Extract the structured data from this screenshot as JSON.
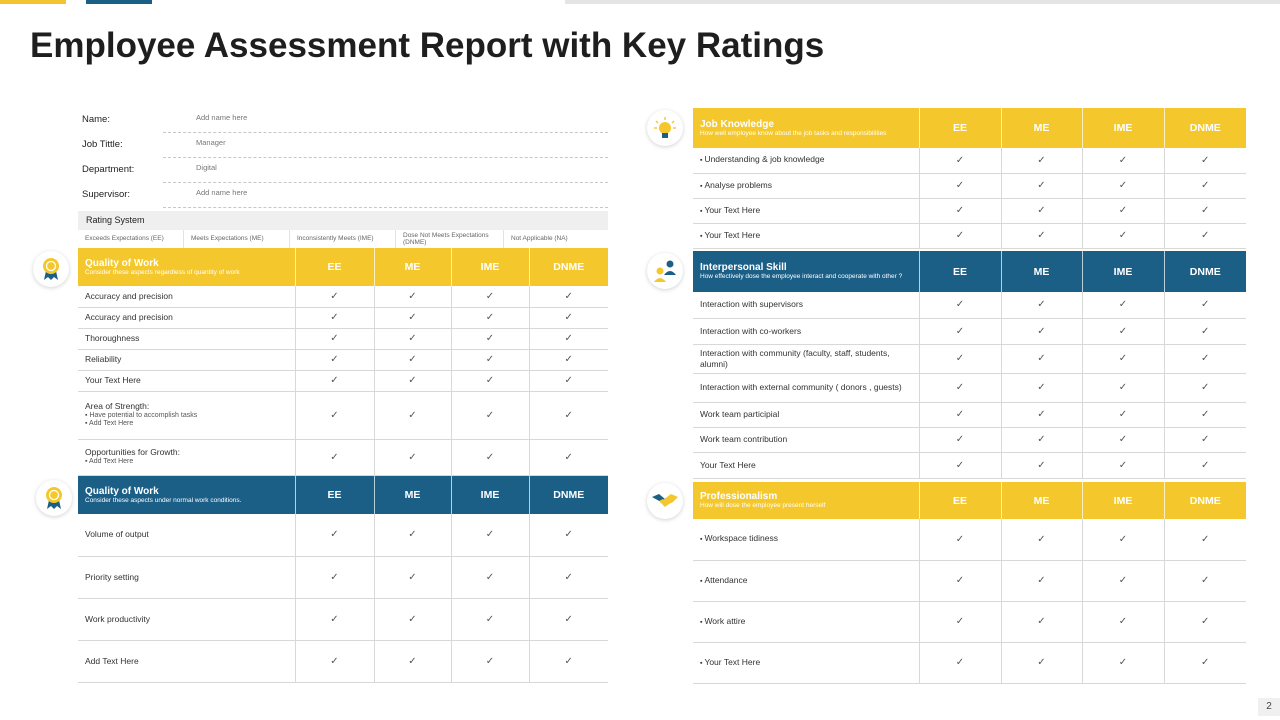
{
  "title": "Employee Assessment Report with Key Ratings",
  "page_number": "2",
  "check": "✓",
  "info": {
    "name_label": "Name:",
    "name_value": "Add name here",
    "job_label": "Job Tittle:",
    "job_value": "Manager",
    "dept_label": "Department:",
    "dept_value": "Digital",
    "sup_label": "Supervisor:",
    "sup_value": "Add name here"
  },
  "rating_system": {
    "title": "Rating System",
    "items": [
      "Exceeds Expectations (EE)",
      "Meets Expectations (ME)",
      "Inconsistently Meets (IME)",
      "Dose Not Meets Expectations (DNME)",
      "Not Applicable (NA)"
    ]
  },
  "columns": [
    "EE",
    "ME",
    "IME",
    "DNME"
  ],
  "quality1": {
    "title": "Quality of Work",
    "subtitle": "Consider these aspects regardless of quantity of work",
    "rows": [
      "Accuracy and precision",
      "Accuracy and precision",
      "Thoroughness",
      "Reliability",
      "Your Text Here"
    ],
    "strength_title": "Area of Strength:",
    "strength_items": [
      "Have potential  to accomplish tasks",
      "Add Text Here"
    ],
    "growth_title": "Opportunities  for Growth:",
    "growth_items": [
      "Add Text Here"
    ]
  },
  "quality2": {
    "title": "Quality of Work",
    "subtitle": "Consider these aspects  under  normal work conditions.",
    "rows": [
      "Volume of output",
      "Priority setting",
      "Work productivity",
      "Add Text Here"
    ]
  },
  "job_knowledge": {
    "title": "Job Knowledge",
    "subtitle": "How well employee  know about  the job tasks and responsibilities",
    "rows": [
      "Understanding & job knowledge",
      "Analyse problems",
      "Your Text Here",
      " Your Text Here"
    ]
  },
  "interpersonal": {
    "title": "Interpersonal Skill",
    "subtitle": "How effectively  dose the employee interact  and cooperate with other  ?",
    "rows": [
      "Interaction with supervisors",
      "Interaction with co-workers",
      "Interaction with community  (faculty, staff, students, alumni)",
      "Interaction with external community ( donors , guests)",
      "Work team participial",
      "Work team contribution",
      "Your Text Here"
    ]
  },
  "professionalism": {
    "title": "Professionalism",
    "subtitle": "How will dose the employee present herself",
    "rows": [
      "Workspace tidiness",
      "Attendance",
      "Work attire",
      "Your Text Here"
    ]
  },
  "colors": {
    "yellow": "#f4c82c",
    "blue": "#1b5f87"
  },
  "icons": [
    "award-badge-icon",
    "award-badge-icon",
    "lightbulb-icon",
    "people-icon",
    "handshake-icon"
  ]
}
